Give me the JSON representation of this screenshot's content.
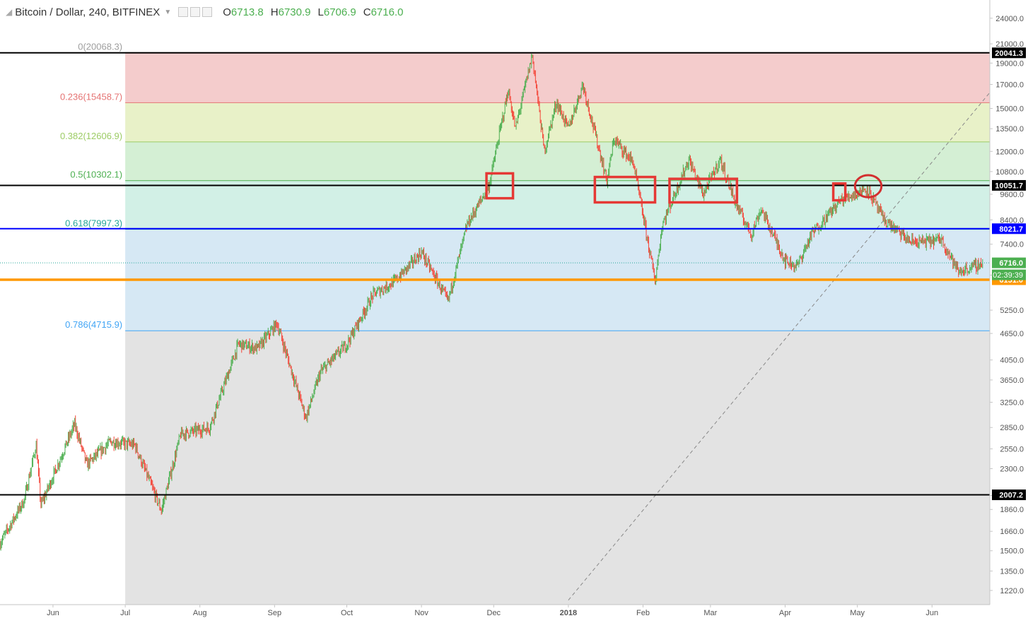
{
  "header": {
    "symbol": "Bitcoin / Dollar, 240, BITFINEX",
    "open_label": "O",
    "open": "6713.8",
    "high_label": "H",
    "high": "6730.9",
    "low_label": "L",
    "low": "6706.9",
    "close_label": "C",
    "close": "6716.0"
  },
  "colors": {
    "fib_0_236": "#f4cccc",
    "fib_236_382": "#e8f1c8",
    "fib_382_5": "#d4efd4",
    "fib_5_618": "#d2f0e6",
    "fib_618_786": "#d6e8f4",
    "fib_below": "#e3e3e3",
    "level_black": "#000000",
    "level_blue": "#0000ff",
    "level_orange": "#ff9800",
    "box_red": "#e53935",
    "up": "#4caf50",
    "down": "#f44336"
  },
  "chart_data": {
    "type": "candlestick",
    "title": "Bitcoin / Dollar, 240, BITFINEX",
    "scale": "log",
    "ylim": [
      1150,
      26000
    ],
    "y_ticks": [
      "24000.0",
      "21000.0",
      "19000.0",
      "17000.0",
      "15000.0",
      "13500.0",
      "12000.0",
      "10800.0",
      "9600.0",
      "8400.0",
      "7400.0",
      "6300.0",
      "5250.0",
      "4650.0",
      "4050.0",
      "3650.0",
      "3250.0",
      "2850.0",
      "2550.0",
      "2300.0",
      "2000.0",
      "1860.0",
      "1660.0",
      "1500.0",
      "1350.0",
      "1220.0"
    ],
    "x_ticks": [
      "Jun",
      "Jul",
      "Aug",
      "Sep",
      "Oct",
      "Nov",
      "Dec",
      "2018",
      "Feb",
      "Mar",
      "Apr",
      "May",
      "Jun"
    ],
    "x_range": [
      "2017-05-10",
      "2018-06-25"
    ],
    "fib_levels": [
      {
        "ratio": "0",
        "label": "0(20068.3)",
        "value": 20068.3,
        "color": "#9e9e9e"
      },
      {
        "ratio": "0.236",
        "label": "0.236(15458.7)",
        "value": 15458.7,
        "color": "#e57373"
      },
      {
        "ratio": "0.382",
        "label": "0.382(12606.9)",
        "value": 12606.9,
        "color": "#9ccc65"
      },
      {
        "ratio": "0.5",
        "label": "0.5(10302.1)",
        "value": 10302.1,
        "color": "#4caf50"
      },
      {
        "ratio": "0.618",
        "label": "0.618(7997.3)",
        "value": 7997.3,
        "color": "#26a69a"
      },
      {
        "ratio": "0.786",
        "label": "0.786(4715.9)",
        "value": 4715.9,
        "color": "#42a5f5"
      }
    ],
    "fib_start_date": "2017-07-01",
    "horizontal_levels": [
      {
        "value": 20041.3,
        "label": "20041.3",
        "color": "#000000"
      },
      {
        "value": 10051.7,
        "label": "10051.7",
        "color": "#000000"
      },
      {
        "value": 8021.7,
        "label": "8021.7",
        "color": "#0000ff"
      },
      {
        "value": 6151.0,
        "label": "6151.0",
        "color": "#ff9800"
      },
      {
        "value": 2007.2,
        "label": "2007.2",
        "color": "#000000"
      }
    ],
    "last_price": {
      "value": 6716.0,
      "label": "6716.0",
      "countdown": "02:39:39"
    },
    "trendline": {
      "from": {
        "date": "2018-01-01",
        "price": 1160
      },
      "to": {
        "date": "2018-06-25",
        "price": 16300
      }
    },
    "price_path": [
      {
        "date": "2017-05-10",
        "price": 1560
      },
      {
        "date": "2017-05-20",
        "price": 1950
      },
      {
        "date": "2017-05-25",
        "price": 2600
      },
      {
        "date": "2017-05-27",
        "price": 1900
      },
      {
        "date": "2017-06-10",
        "price": 2900
      },
      {
        "date": "2017-06-15",
        "price": 2350
      },
      {
        "date": "2017-06-25",
        "price": 2650
      },
      {
        "date": "2017-07-05",
        "price": 2600
      },
      {
        "date": "2017-07-16",
        "price": 1850
      },
      {
        "date": "2017-07-24",
        "price": 2750
      },
      {
        "date": "2017-08-05",
        "price": 2850
      },
      {
        "date": "2017-08-17",
        "price": 4400
      },
      {
        "date": "2017-08-25",
        "price": 4300
      },
      {
        "date": "2017-09-02",
        "price": 4900
      },
      {
        "date": "2017-09-14",
        "price": 3000
      },
      {
        "date": "2017-09-20",
        "price": 3800
      },
      {
        "date": "2017-10-01",
        "price": 4400
      },
      {
        "date": "2017-10-12",
        "price": 5700
      },
      {
        "date": "2017-10-21",
        "price": 6100
      },
      {
        "date": "2017-11-01",
        "price": 7100
      },
      {
        "date": "2017-11-12",
        "price": 5500
      },
      {
        "date": "2017-11-20",
        "price": 8200
      },
      {
        "date": "2017-11-29",
        "price": 10000
      },
      {
        "date": "2017-12-07",
        "price": 16500
      },
      {
        "date": "2017-12-10",
        "price": 13500
      },
      {
        "date": "2017-12-17",
        "price": 19800
      },
      {
        "date": "2017-12-22",
        "price": 12000
      },
      {
        "date": "2017-12-27",
        "price": 15500
      },
      {
        "date": "2018-01-01",
        "price": 13500
      },
      {
        "date": "2018-01-07",
        "price": 17000
      },
      {
        "date": "2018-01-17",
        "price": 10300
      },
      {
        "date": "2018-01-20",
        "price": 12800
      },
      {
        "date": "2018-01-28",
        "price": 11300
      },
      {
        "date": "2018-02-06",
        "price": 6100
      },
      {
        "date": "2018-02-09",
        "price": 8200
      },
      {
        "date": "2018-02-20",
        "price": 11500
      },
      {
        "date": "2018-02-26",
        "price": 9600
      },
      {
        "date": "2018-03-05",
        "price": 11500
      },
      {
        "date": "2018-03-12",
        "price": 9000
      },
      {
        "date": "2018-03-18",
        "price": 7800
      },
      {
        "date": "2018-03-22",
        "price": 8900
      },
      {
        "date": "2018-04-01",
        "price": 6800
      },
      {
        "date": "2018-04-06",
        "price": 6600
      },
      {
        "date": "2018-04-12",
        "price": 7800
      },
      {
        "date": "2018-04-24",
        "price": 9300
      },
      {
        "date": "2018-05-05",
        "price": 9900
      },
      {
        "date": "2018-05-12",
        "price": 8400
      },
      {
        "date": "2018-05-23",
        "price": 7500
      },
      {
        "date": "2018-05-30",
        "price": 7500
      },
      {
        "date": "2018-06-05",
        "price": 7600
      },
      {
        "date": "2018-06-12",
        "price": 6400
      },
      {
        "date": "2018-06-22",
        "price": 6700
      }
    ],
    "boxes": [
      {
        "shape": "rect",
        "from_date": "2017-11-28",
        "to_date": "2017-12-09",
        "high": 10700,
        "low": 9400
      },
      {
        "shape": "rect",
        "from_date": "2018-01-12",
        "to_date": "2018-02-06",
        "high": 10500,
        "low": 9200
      },
      {
        "shape": "rect",
        "from_date": "2018-02-12",
        "to_date": "2018-03-12",
        "high": 10400,
        "low": 9200
      },
      {
        "shape": "rect",
        "from_date": "2018-04-21",
        "to_date": "2018-04-26",
        "high": 10150,
        "low": 9300
      },
      {
        "shape": "ellipse",
        "from_date": "2018-04-30",
        "to_date": "2018-05-11",
        "high": 10600,
        "low": 9450
      }
    ]
  }
}
